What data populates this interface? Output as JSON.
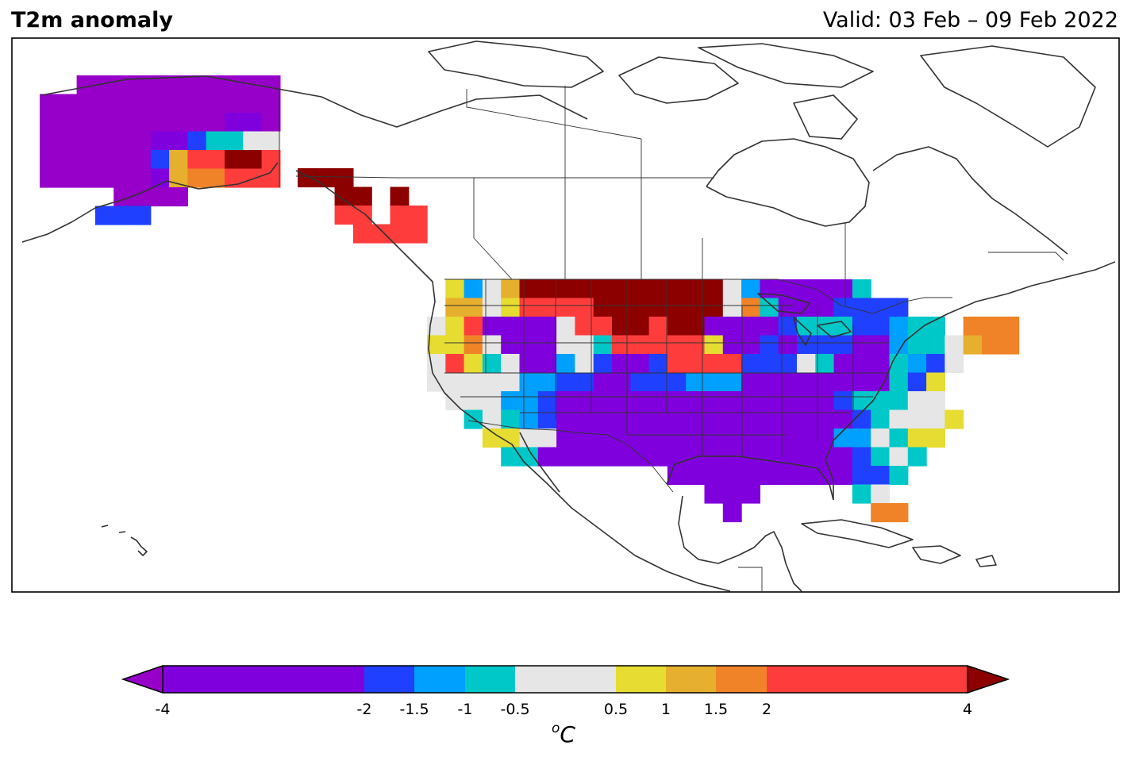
{
  "header": {
    "title": "T2m anomaly",
    "valid": "Valid: 03 Feb – 09 Feb 2022"
  },
  "colorbar": {
    "unit_symbol": "o",
    "unit_letter": "C",
    "ticks": [
      "-4",
      "-2",
      "-1.5",
      "-1",
      "-0.5",
      "0.5",
      "1",
      "1.5",
      "2",
      "4"
    ],
    "bins": [
      {
        "from": -4,
        "to": -2,
        "color": "#8000DD"
      },
      {
        "from": -2,
        "to": -1.5,
        "color": "#2040FF"
      },
      {
        "from": -1.5,
        "to": -1,
        "color": "#00A0FF"
      },
      {
        "from": -1,
        "to": -0.5,
        "color": "#00C8C8"
      },
      {
        "from": -0.5,
        "to": 0.5,
        "color": "#E6E6E6"
      },
      {
        "from": 0.5,
        "to": 1,
        "color": "#E6DC32"
      },
      {
        "from": 1,
        "to": 1.5,
        "color": "#E6AF2D"
      },
      {
        "from": 1.5,
        "to": 2,
        "color": "#F08228"
      },
      {
        "from": 2,
        "to": 4,
        "color": "#FF3C3C"
      }
    ],
    "under_color": "#9600C8",
    "over_color": "#8C0000"
  },
  "map_data": {
    "variable": "2 m temperature anomaly",
    "units": "degC",
    "legend": {
      "V": "below -4",
      "P": "-4 to -2",
      "B": "-2 to -1.5",
      "L": "-1.5 to -1",
      "C": "-1 to -0.5",
      "W": "-0.5 to 0.5",
      "Y": "0.5 to 1",
      "G": "1 to 1.5",
      "O": "1.5 to 2",
      "R": "2 to 4",
      "D": "above 4"
    },
    "regions": [
      {
        "name": "Alaska",
        "rows": [
          "..VVVVVVVVVVV",
          "VVVVVVVVVVVVV",
          "VVVVVVVVVVPPV",
          "VVVVVVPPBCCWW",
          "VVVVVVBGRRDDR",
          "VVVVVVPGOORRR",
          "....VVVV.....",
          "...BBB......."
        ]
      },
      {
        "name": "Southeast Alaska and British Columbia coast",
        "rows": [
          "DDD....",
          "..DD.D.",
          "..RR.RR",
          "...RRRR"
        ]
      },
      {
        "name": "Contiguous United States",
        "rows": [
          ".YLWGDDDDDDDDDDDWLPPPPPC........",
          ".GGWYRRRRDDDDDDDWOCPPPBBBB......",
          "WYRPPPPWRRDDRDDPPPPBCCCBBLCC.OOO",
          "YYOWPPPWWCRRRRRYPPBPBBBPPLCCWGOO",
          "WRYCWPPLWBPPBRRRRBBBWCPPPCLBW...",
          "WWWWWLLBBPPBBBLLLPPPPPPPPCBY....",
          ".WWWLLBPPPPPPPPPPPPPPPBCCCWW....",
          "..CWCLBPPPPPPPPPPPPPPPPBCWWWY...",
          "...YYWWPPPPPPPPPPPPPPPLLWCYY....",
          "....CCPPPPPPPPPPPPPPPPPBCWC.....",
          ".............PPPPPPPPPPBBC......",
          "...............PPP.....CW.......",
          "................P.......OO......"
        ]
      }
    ]
  }
}
